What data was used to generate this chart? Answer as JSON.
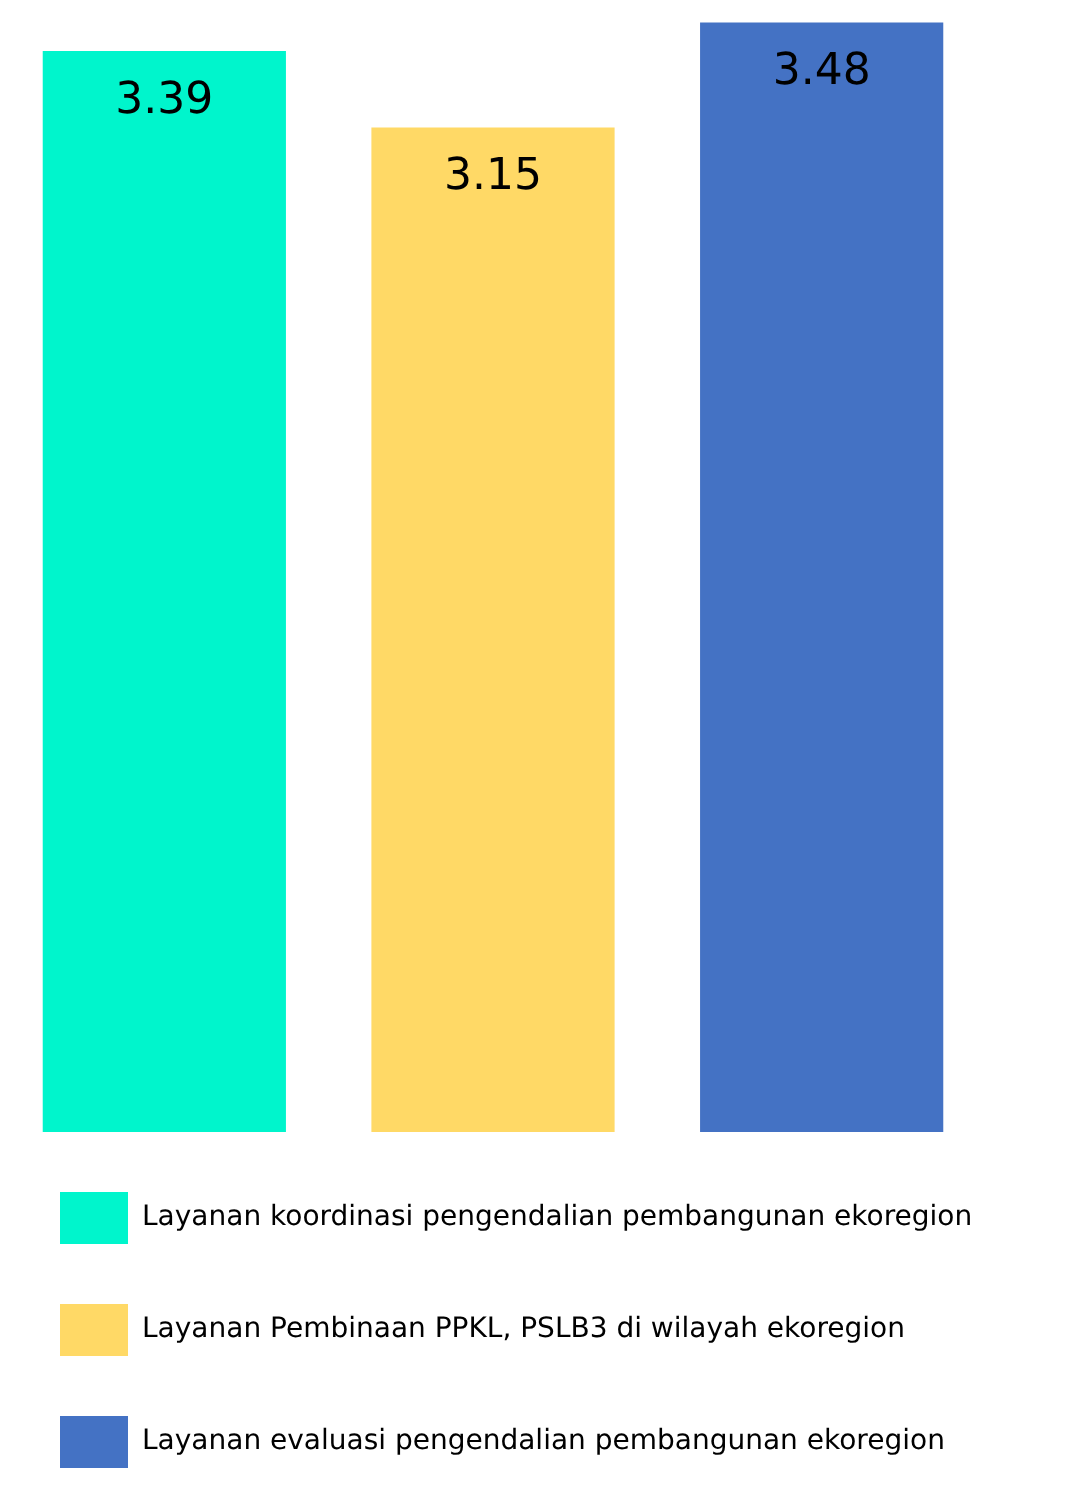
{
  "chart_data": {
    "type": "bar",
    "categories": [
      null,
      null,
      null
    ],
    "series": [
      {
        "name": "Layanan koordinasi pengendalian pembangunan ekoregion",
        "color": "#00f5cc",
        "values": [
          3.39,
          null,
          null
        ]
      },
      {
        "name": "Layanan Pembinaan PPKL, PSLB3 di wilayah ekoregion",
        "color": "#ffd966",
        "values": [
          null,
          3.15,
          null
        ]
      },
      {
        "name": "Layanan evaluasi pengendalian pembangunan ekoregion",
        "color": "#4472c4",
        "values": [
          null,
          null,
          3.48
        ]
      }
    ],
    "stacked": true,
    "data_labels": true,
    "legend": "bottom",
    "tick_labels": false,
    "grid": false
  }
}
